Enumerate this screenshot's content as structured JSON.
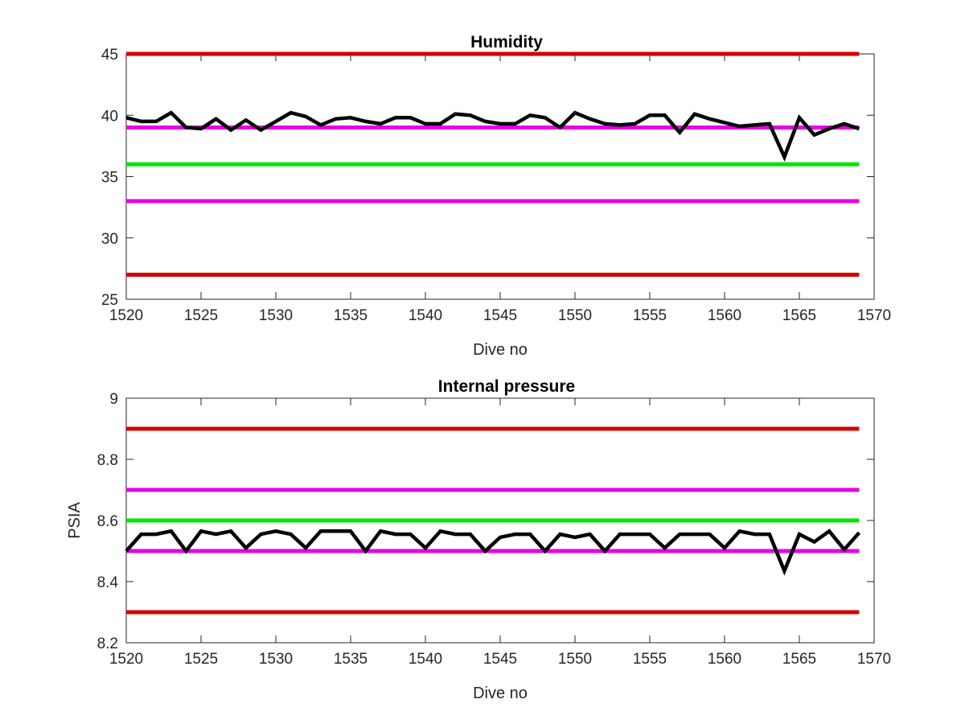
{
  "chart_data": [
    {
      "type": "line",
      "title": "Humidity",
      "xlabel": "Dive no",
      "ylabel": "",
      "xlim": [
        1520,
        1570
      ],
      "ylim": [
        25,
        45
      ],
      "xticks": [
        "1520",
        "1525",
        "1530",
        "1535",
        "1540",
        "1545",
        "1550",
        "1555",
        "1560",
        "1565",
        "1570"
      ],
      "yticks": [
        "25",
        "30",
        "35",
        "40",
        "45"
      ],
      "grid": false,
      "legend": "none",
      "reference_lines": [
        {
          "value": 45,
          "color": "#d40000"
        },
        {
          "value": 39,
          "color": "#e600e6"
        },
        {
          "value": 36,
          "color": "#00e600"
        },
        {
          "value": 33,
          "color": "#e600e6"
        },
        {
          "value": 27,
          "color": "#d40000"
        }
      ],
      "series": [
        {
          "color": "#000000",
          "x": [
            1520,
            1521,
            1522,
            1523,
            1524,
            1525,
            1526,
            1527,
            1528,
            1529,
            1530,
            1531,
            1532,
            1533,
            1534,
            1535,
            1536,
            1537,
            1538,
            1539,
            1540,
            1541,
            1542,
            1543,
            1544,
            1545,
            1546,
            1547,
            1548,
            1549,
            1550,
            1551,
            1552,
            1553,
            1554,
            1555,
            1556,
            1557,
            1558,
            1559,
            1560,
            1561,
            1562,
            1563,
            1564,
            1565,
            1566,
            1567,
            1568,
            1569
          ],
          "y": [
            39.8,
            39.5,
            39.5,
            40.2,
            39.0,
            38.9,
            39.7,
            38.8,
            39.6,
            38.8,
            39.5,
            40.2,
            39.9,
            39.2,
            39.7,
            39.8,
            39.5,
            39.3,
            39.8,
            39.8,
            39.3,
            39.3,
            40.1,
            40.0,
            39.5,
            39.3,
            39.3,
            40.0,
            39.8,
            39.0,
            40.2,
            39.7,
            39.3,
            39.2,
            39.3,
            40.0,
            40.0,
            38.6,
            40.1,
            39.7,
            39.4,
            39.1,
            39.2,
            39.3,
            36.6,
            39.8,
            38.4,
            38.9,
            39.3,
            38.9
          ]
        }
      ]
    },
    {
      "type": "line",
      "title": "Internal pressure",
      "xlabel": "Dive no",
      "ylabel": "PSIA",
      "xlim": [
        1520,
        1570
      ],
      "ylim": [
        8.2,
        9.0
      ],
      "xticks": [
        "1520",
        "1525",
        "1530",
        "1535",
        "1540",
        "1545",
        "1550",
        "1555",
        "1560",
        "1565",
        "1570"
      ],
      "yticks": [
        "8.2",
        "8.4",
        "8.6",
        "8.8",
        "9"
      ],
      "grid": false,
      "legend": "none",
      "reference_lines": [
        {
          "value": 8.9,
          "color": "#d40000"
        },
        {
          "value": 8.7,
          "color": "#e600e6"
        },
        {
          "value": 8.6,
          "color": "#00e600"
        },
        {
          "value": 8.5,
          "color": "#e600e6"
        },
        {
          "value": 8.3,
          "color": "#d40000"
        }
      ],
      "series": [
        {
          "color": "#000000",
          "x": [
            1520,
            1521,
            1522,
            1523,
            1524,
            1525,
            1526,
            1527,
            1528,
            1529,
            1530,
            1531,
            1532,
            1533,
            1534,
            1535,
            1536,
            1537,
            1538,
            1539,
            1540,
            1541,
            1542,
            1543,
            1544,
            1545,
            1546,
            1547,
            1548,
            1549,
            1550,
            1551,
            1552,
            1553,
            1554,
            1555,
            1556,
            1557,
            1558,
            1559,
            1560,
            1561,
            1562,
            1563,
            1564,
            1565,
            1566,
            1567,
            1568,
            1569
          ],
          "y": [
            8.5,
            8.555,
            8.555,
            8.565,
            8.5,
            8.565,
            8.555,
            8.565,
            8.51,
            8.555,
            8.565,
            8.555,
            8.51,
            8.565,
            8.565,
            8.565,
            8.5,
            8.565,
            8.555,
            8.555,
            8.51,
            8.565,
            8.555,
            8.555,
            8.5,
            8.545,
            8.555,
            8.555,
            8.5,
            8.555,
            8.545,
            8.555,
            8.5,
            8.555,
            8.555,
            8.555,
            8.51,
            8.555,
            8.555,
            8.555,
            8.51,
            8.565,
            8.555,
            8.555,
            8.435,
            8.555,
            8.53,
            8.565,
            8.505,
            8.56
          ]
        }
      ]
    }
  ]
}
